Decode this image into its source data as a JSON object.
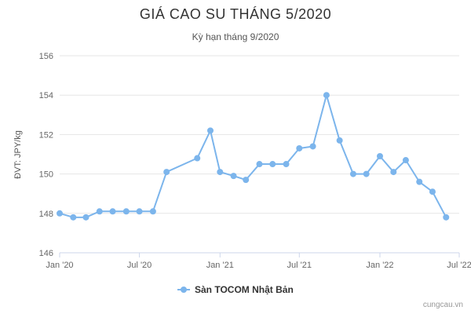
{
  "chart_data": {
    "type": "line",
    "title": "GIÁ CAO SU THÁNG 5/2020",
    "subtitle": "Kỳ hạn tháng 9/2020",
    "ylabel": "ĐVT: JPY/kg",
    "xlabel": "",
    "ylim": [
      146,
      156
    ],
    "yticks": [
      146,
      148,
      150,
      152,
      154,
      156
    ],
    "xlim": [
      "2020-01-01",
      "2022-07-01"
    ],
    "xticks": [
      {
        "date": "2020-01-01",
        "label": "Jan '20"
      },
      {
        "date": "2020-07-01",
        "label": "Jul '20"
      },
      {
        "date": "2021-01-01",
        "label": "Jan '21"
      },
      {
        "date": "2021-07-01",
        "label": "Jul '21"
      },
      {
        "date": "2022-01-01",
        "label": "Jan '22"
      },
      {
        "date": "2022-07-01",
        "label": "Jul '22"
      }
    ],
    "grid": true,
    "legend_position": "bottom-center",
    "color": "#7cb5ec",
    "series": [
      {
        "name": "Sàn TOCOM Nhật Bản",
        "points": [
          {
            "x": "2020-01-01",
            "y": 148.0
          },
          {
            "x": "2020-02-01",
            "y": 147.8
          },
          {
            "x": "2020-03-01",
            "y": 147.8
          },
          {
            "x": "2020-04-01",
            "y": 148.1
          },
          {
            "x": "2020-05-01",
            "y": 148.1
          },
          {
            "x": "2020-06-01",
            "y": 148.1
          },
          {
            "x": "2020-07-01",
            "y": 148.1
          },
          {
            "x": "2020-08-01",
            "y": 148.1
          },
          {
            "x": "2020-09-01",
            "y": 150.1
          },
          {
            "x": "2020-11-10",
            "y": 150.8
          },
          {
            "x": "2020-12-10",
            "y": 152.2
          },
          {
            "x": "2021-01-01",
            "y": 150.1
          },
          {
            "x": "2021-02-01",
            "y": 149.9
          },
          {
            "x": "2021-03-01",
            "y": 149.7
          },
          {
            "x": "2021-04-01",
            "y": 150.5
          },
          {
            "x": "2021-05-01",
            "y": 150.5
          },
          {
            "x": "2021-06-01",
            "y": 150.5
          },
          {
            "x": "2021-07-01",
            "y": 151.3
          },
          {
            "x": "2021-08-01",
            "y": 151.4
          },
          {
            "x": "2021-09-01",
            "y": 154.0
          },
          {
            "x": "2021-10-01",
            "y": 151.7
          },
          {
            "x": "2021-11-01",
            "y": 150.0
          },
          {
            "x": "2021-12-01",
            "y": 150.0
          },
          {
            "x": "2022-01-01",
            "y": 150.9
          },
          {
            "x": "2022-02-01",
            "y": 150.1
          },
          {
            "x": "2022-03-01",
            "y": 150.7
          },
          {
            "x": "2022-04-01",
            "y": 149.6
          },
          {
            "x": "2022-05-01",
            "y": 149.1
          },
          {
            "x": "2022-06-01",
            "y": 147.8
          }
        ]
      }
    ]
  },
  "credit": "cungcau.vn"
}
